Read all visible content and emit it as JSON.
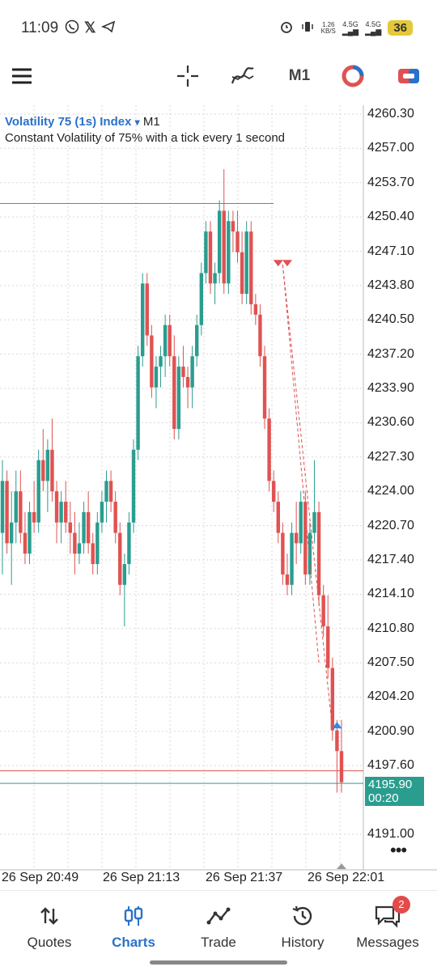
{
  "status_bar": {
    "time": "11:09",
    "net_speed_value": "1.26",
    "net_speed_unit": "KB/S",
    "sig1": "4.5G",
    "sig2": "4.5G",
    "battery": "36"
  },
  "toolbar": {
    "menu_icon": "hamburger-menu-icon",
    "crosshair_icon": "crosshair-icon",
    "indicators_icon": "indicators-icon",
    "timeframe": "M1",
    "objects_icon": "chart-objects-icon",
    "trade_icon": "trade-panel-icon"
  },
  "chart": {
    "symbol": "Volatility 75 (1s) Index",
    "dropdown_glyph": "▾",
    "timeframe": "M1",
    "description": "Constant Volatility of 75% with a tick every 1 second",
    "price_labels": [
      "4260.30",
      "4257.00",
      "4253.70",
      "4250.40",
      "4247.10",
      "4243.80",
      "4240.50",
      "4237.20",
      "4233.90",
      "4230.60",
      "4227.30",
      "4224.00",
      "4220.70",
      "4217.40",
      "4214.10",
      "4210.80",
      "4207.50",
      "4204.20",
      "4200.90",
      "4197.60",
      "4191.00"
    ],
    "current_price": "4195.90",
    "countdown": "00:20",
    "time_labels": [
      "26 Sep 20:49",
      "26 Sep 21:13",
      "26 Sep 21:37",
      "26 Sep 22:01"
    ],
    "colors": {
      "bull": "#2a9d8f",
      "bear": "#e05252",
      "grid": "#dadada",
      "accent": "#2a72c9"
    }
  },
  "chart_data": {
    "type": "candlestick",
    "symbol": "Volatility 75 (1s) Index",
    "timeframe": "M1",
    "ylim": [
      4189.0,
      4261.0
    ],
    "y_ticks": [
      4260.3,
      4257.0,
      4253.7,
      4250.4,
      4247.1,
      4243.8,
      4240.5,
      4237.2,
      4233.9,
      4230.6,
      4227.3,
      4224.0,
      4220.7,
      4217.4,
      4214.1,
      4210.8,
      4207.5,
      4204.2,
      4200.9,
      4197.6,
      4191.0
    ],
    "x_ticks": [
      "26 Sep 20:49",
      "26 Sep 21:13",
      "26 Sep 21:37",
      "26 Sep 22:01"
    ],
    "current_price": 4195.9,
    "price_lines": [
      {
        "price": 4251.7,
        "color": "#e05252",
        "extent": "partial"
      },
      {
        "price": 4197.1,
        "color": "#e05252",
        "extent": "full"
      },
      {
        "price": 4195.9,
        "color": "#2a9d8f",
        "extent": "full"
      }
    ],
    "trades": [
      {
        "type": "sell",
        "open": 4245.8,
        "close": 4207.5
      },
      {
        "type": "sell",
        "open": 4245.8,
        "close": 4201.1
      }
    ],
    "candles": [
      {
        "o": 4220,
        "h": 4227,
        "l": 4216,
        "c": 4225
      },
      {
        "o": 4225,
        "h": 4226,
        "l": 4218,
        "c": 4219
      },
      {
        "o": 4219,
        "h": 4224,
        "l": 4215,
        "c": 4221
      },
      {
        "o": 4221,
        "h": 4226,
        "l": 4219,
        "c": 4224
      },
      {
        "o": 4224,
        "h": 4226,
        "l": 4219,
        "c": 4220
      },
      {
        "o": 4220,
        "h": 4222,
        "l": 4217,
        "c": 4218
      },
      {
        "o": 4218,
        "h": 4223,
        "l": 4217,
        "c": 4222
      },
      {
        "o": 4222,
        "h": 4225,
        "l": 4220,
        "c": 4221
      },
      {
        "o": 4221,
        "h": 4228,
        "l": 4220,
        "c": 4227
      },
      {
        "o": 4227,
        "h": 4230,
        "l": 4224,
        "c": 4225
      },
      {
        "o": 4225,
        "h": 4229,
        "l": 4222,
        "c": 4228
      },
      {
        "o": 4228,
        "h": 4231,
        "l": 4223,
        "c": 4224
      },
      {
        "o": 4224,
        "h": 4225,
        "l": 4219,
        "c": 4221
      },
      {
        "o": 4221,
        "h": 4224,
        "l": 4219,
        "c": 4223
      },
      {
        "o": 4223,
        "h": 4225,
        "l": 4220,
        "c": 4221
      },
      {
        "o": 4221,
        "h": 4223,
        "l": 4218,
        "c": 4220
      },
      {
        "o": 4220,
        "h": 4222,
        "l": 4216,
        "c": 4218
      },
      {
        "o": 4218,
        "h": 4221,
        "l": 4217,
        "c": 4219
      },
      {
        "o": 4219,
        "h": 4223,
        "l": 4218,
        "c": 4222
      },
      {
        "o": 4222,
        "h": 4224,
        "l": 4218,
        "c": 4219
      },
      {
        "o": 4219,
        "h": 4220,
        "l": 4216,
        "c": 4217
      },
      {
        "o": 4217,
        "h": 4222,
        "l": 4216,
        "c": 4221
      },
      {
        "o": 4221,
        "h": 4224,
        "l": 4220,
        "c": 4223
      },
      {
        "o": 4223,
        "h": 4226,
        "l": 4221,
        "c": 4225
      },
      {
        "o": 4225,
        "h": 4226,
        "l": 4222,
        "c": 4223
      },
      {
        "o": 4223,
        "h": 4224,
        "l": 4219,
        "c": 4220
      },
      {
        "o": 4220,
        "h": 4221,
        "l": 4214,
        "c": 4215
      },
      {
        "o": 4215,
        "h": 4218,
        "l": 4211,
        "c": 4217
      },
      {
        "o": 4217,
        "h": 4222,
        "l": 4216,
        "c": 4221
      },
      {
        "o": 4221,
        "h": 4229,
        "l": 4220,
        "c": 4228
      },
      {
        "o": 4228,
        "h": 4238,
        "l": 4227,
        "c": 4237
      },
      {
        "o": 4237,
        "h": 4245,
        "l": 4236,
        "c": 4244
      },
      {
        "o": 4244,
        "h": 4245,
        "l": 4238,
        "c": 4239
      },
      {
        "o": 4239,
        "h": 4240,
        "l": 4233,
        "c": 4234
      },
      {
        "o": 4234,
        "h": 4237,
        "l": 4232,
        "c": 4236
      },
      {
        "o": 4236,
        "h": 4238,
        "l": 4234,
        "c": 4237
      },
      {
        "o": 4237,
        "h": 4241,
        "l": 4235,
        "c": 4240
      },
      {
        "o": 4240,
        "h": 4241,
        "l": 4236,
        "c": 4237
      },
      {
        "o": 4237,
        "h": 4239,
        "l": 4229,
        "c": 4230
      },
      {
        "o": 4230,
        "h": 4237,
        "l": 4229,
        "c": 4236
      },
      {
        "o": 4236,
        "h": 4238,
        "l": 4234,
        "c": 4235
      },
      {
        "o": 4235,
        "h": 4236,
        "l": 4232,
        "c": 4234
      },
      {
        "o": 4234,
        "h": 4238,
        "l": 4232,
        "c": 4237
      },
      {
        "o": 4237,
        "h": 4241,
        "l": 4236,
        "c": 4240
      },
      {
        "o": 4240,
        "h": 4246,
        "l": 4239,
        "c": 4245
      },
      {
        "o": 4245,
        "h": 4250,
        "l": 4244,
        "c": 4249
      },
      {
        "o": 4249,
        "h": 4250,
        "l": 4243,
        "c": 4244
      },
      {
        "o": 4244,
        "h": 4246,
        "l": 4242,
        "c": 4245
      },
      {
        "o": 4245,
        "h": 4252,
        "l": 4244,
        "c": 4251
      },
      {
        "o": 4251,
        "h": 4255,
        "l": 4243,
        "c": 4244
      },
      {
        "o": 4244,
        "h": 4251,
        "l": 4243,
        "c": 4250
      },
      {
        "o": 4250,
        "h": 4251,
        "l": 4247,
        "c": 4249
      },
      {
        "o": 4249,
        "h": 4251,
        "l": 4246,
        "c": 4247
      },
      {
        "o": 4247,
        "h": 4249,
        "l": 4242,
        "c": 4243
      },
      {
        "o": 4243,
        "h": 4250,
        "l": 4242,
        "c": 4249
      },
      {
        "o": 4249,
        "h": 4250,
        "l": 4241,
        "c": 4242
      },
      {
        "o": 4242,
        "h": 4243,
        "l": 4240,
        "c": 4241
      },
      {
        "o": 4241,
        "h": 4242,
        "l": 4236,
        "c": 4237
      },
      {
        "o": 4237,
        "h": 4238,
        "l": 4230,
        "c": 4231
      },
      {
        "o": 4231,
        "h": 4232,
        "l": 4224,
        "c": 4225
      },
      {
        "o": 4225,
        "h": 4226,
        "l": 4222,
        "c": 4223
      },
      {
        "o": 4223,
        "h": 4224,
        "l": 4219,
        "c": 4220
      },
      {
        "o": 4220,
        "h": 4221,
        "l": 4215,
        "c": 4216
      },
      {
        "o": 4216,
        "h": 4218,
        "l": 4214,
        "c": 4215
      },
      {
        "o": 4215,
        "h": 4221,
        "l": 4214,
        "c": 4220
      },
      {
        "o": 4220,
        "h": 4223,
        "l": 4217,
        "c": 4219
      },
      {
        "o": 4219,
        "h": 4224,
        "l": 4218,
        "c": 4223
      },
      {
        "o": 4223,
        "h": 4224,
        "l": 4215,
        "c": 4216
      },
      {
        "o": 4216,
        "h": 4221,
        "l": 4215,
        "c": 4220
      },
      {
        "o": 4220,
        "h": 4227,
        "l": 4219,
        "c": 4222
      },
      {
        "o": 4222,
        "h": 4223,
        "l": 4213,
        "c": 4214
      },
      {
        "o": 4214,
        "h": 4215,
        "l": 4210,
        "c": 4211
      },
      {
        "o": 4211,
        "h": 4214,
        "l": 4206,
        "c": 4207
      },
      {
        "o": 4207,
        "h": 4208,
        "l": 4200,
        "c": 4201
      },
      {
        "o": 4201,
        "h": 4202,
        "l": 4195,
        "c": 4199
      },
      {
        "o": 4199,
        "h": 4202,
        "l": 4195,
        "c": 4196
      }
    ]
  },
  "nav": {
    "items": [
      {
        "label": "Quotes",
        "icon": "quotes-arrows-icon"
      },
      {
        "label": "Charts",
        "icon": "candles-icon"
      },
      {
        "label": "Trade",
        "icon": "trade-line-icon"
      },
      {
        "label": "History",
        "icon": "history-clock-icon"
      },
      {
        "label": "Messages",
        "icon": "messages-icon"
      }
    ],
    "messages_badge": "2"
  }
}
